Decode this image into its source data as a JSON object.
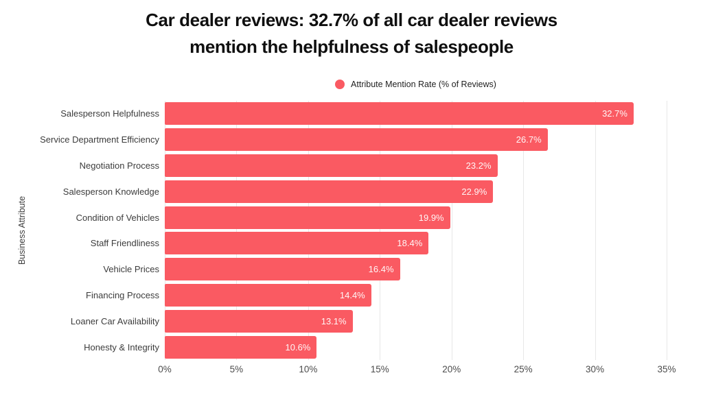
{
  "chart_data": {
    "type": "bar",
    "orientation": "horizontal",
    "title": "Car dealer reviews: 32.7% of all car dealer reviews mention the helpfulness of salespeople",
    "title_lines": [
      "Car dealer reviews: 32.7% of all car dealer reviews",
      "mention the helpfulness of salespeople"
    ],
    "legend": [
      "Attribute Mention Rate (% of Reviews)"
    ],
    "legend_position": "top-center",
    "xlabel": "",
    "ylabel": "Business Attribute",
    "categories": [
      "Salesperson Helpfulness",
      "Service Department Efficiency",
      "Negotiation Process",
      "Salesperson Knowledge",
      "Condition of Vehicles",
      "Staff Friendliness",
      "Vehicle Prices",
      "Financing Process",
      "Loaner Car Availability",
      "Honesty & Integrity"
    ],
    "values": [
      32.7,
      26.7,
      23.2,
      22.9,
      19.9,
      18.4,
      16.4,
      14.4,
      13.1,
      10.6
    ],
    "value_labels": [
      "32.7%",
      "26.7%",
      "23.2%",
      "22.9%",
      "19.9%",
      "18.4%",
      "16.4%",
      "14.4%",
      "13.1%",
      "10.6%"
    ],
    "xlim": [
      0,
      35
    ],
    "xtick_values": [
      0,
      5,
      10,
      15,
      20,
      25,
      30,
      35
    ],
    "xtick_labels": [
      "0%",
      "5%",
      "10%",
      "15%",
      "20%",
      "25%",
      "30%",
      "35%"
    ],
    "grid": "vertical-only",
    "bar_color": "#fa5a62",
    "gridline_color": "#e7e7e7",
    "background_color": "#ffffff",
    "title_color": "#0f0f0f",
    "value_label_color": "#ffffff"
  }
}
